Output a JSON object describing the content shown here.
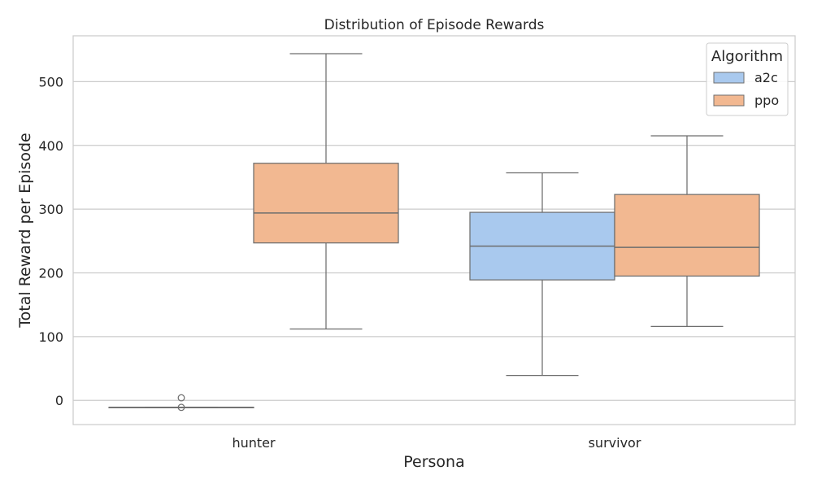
{
  "chart_data": {
    "type": "box",
    "title": "Distribution of Episode Rewards",
    "xlabel": "Persona",
    "ylabel": "Total Reward per Episode",
    "categories": [
      "hunter",
      "survivor"
    ],
    "ylim": [
      -38,
      572
    ],
    "yticks": [
      0,
      100,
      200,
      300,
      400,
      500
    ],
    "grid": true,
    "legend": {
      "title": "Algorithm",
      "placement": "top-right"
    },
    "series": [
      {
        "name": "a2c",
        "color": "#a9c9ee",
        "boxes": [
          {
            "category": "hunter",
            "min": -11,
            "q1": -11,
            "median": -11,
            "q3": -11,
            "max": -11,
            "outliers": [
              4,
              -11
            ]
          },
          {
            "category": "survivor",
            "min": 39,
            "q1": 189,
            "median": 242,
            "q3": 295,
            "max": 357,
            "outliers": []
          }
        ]
      },
      {
        "name": "ppo",
        "color": "#f2b891",
        "boxes": [
          {
            "category": "hunter",
            "min": 112,
            "q1": 247,
            "median": 294,
            "q3": 372,
            "max": 544,
            "outliers": []
          },
          {
            "category": "survivor",
            "min": 116,
            "q1": 195,
            "median": 240,
            "q3": 323,
            "max": 415,
            "outliers": []
          }
        ]
      }
    ]
  }
}
